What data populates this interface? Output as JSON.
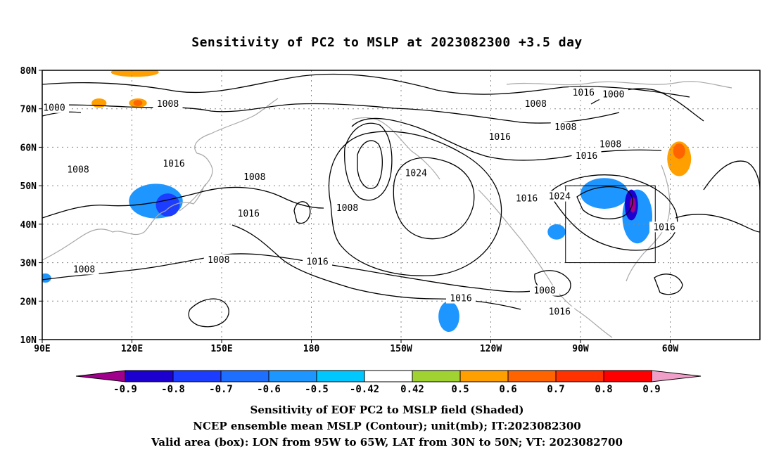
{
  "title": "Sensitivity of PC2 to MSLP at 2023082300 +3.5 day",
  "axes": {
    "lat_labels": [
      "80N",
      "70N",
      "60N",
      "50N",
      "40N",
      "30N",
      "20N",
      "10N"
    ],
    "lon_labels": [
      "90E",
      "120E",
      "150E",
      "180",
      "150W",
      "120W",
      "90W",
      "60W"
    ]
  },
  "contour_labels": [
    {
      "text": "1000",
      "lon": 94,
      "lat": 70
    },
    {
      "text": "1008",
      "lon": 132,
      "lat": 71
    },
    {
      "text": "1016",
      "lon": 271,
      "lat": 74
    },
    {
      "text": "1008",
      "lon": 255,
      "lat": 71
    },
    {
      "text": "1000",
      "lon": 281,
      "lat": 73.5
    },
    {
      "text": "1008",
      "lon": 265,
      "lat": 65
    },
    {
      "text": "1016",
      "lon": 243,
      "lat": 62.5
    },
    {
      "text": "1008",
      "lon": 280,
      "lat": 60.5
    },
    {
      "text": "1016",
      "lon": 272,
      "lat": 57.5
    },
    {
      "text": "1008",
      "lon": 102,
      "lat": 54
    },
    {
      "text": "1016",
      "lon": 134,
      "lat": 55.5
    },
    {
      "text": "1008",
      "lon": 161,
      "lat": 52
    },
    {
      "text": "1024",
      "lon": 215,
      "lat": 53
    },
    {
      "text": "1016",
      "lon": 252,
      "lat": 46.5
    },
    {
      "text": "1024",
      "lon": 263,
      "lat": 47
    },
    {
      "text": "1016",
      "lon": 159,
      "lat": 42.5
    },
    {
      "text": "1008",
      "lon": 192,
      "lat": 44
    },
    {
      "text": "1016",
      "lon": 298,
      "lat": 39
    },
    {
      "text": "1008",
      "lon": 149,
      "lat": 30.5
    },
    {
      "text": "1016",
      "lon": 182,
      "lat": 30
    },
    {
      "text": "1008",
      "lon": 104,
      "lat": 28
    },
    {
      "text": "1008",
      "lon": 258,
      "lat": 22.5
    },
    {
      "text": "1016",
      "lon": 230,
      "lat": 20.5
    },
    {
      "text": "1016",
      "lon": 263,
      "lat": 17
    }
  ],
  "valid_box": {
    "lon_w": 265,
    "lon_e": 295,
    "lat_s": 30,
    "lat_n": 50
  },
  "shading": [
    {
      "value": -0.5,
      "cx": 128,
      "cy": 46,
      "rx": 9,
      "ry": 4.5
    },
    {
      "value": -0.7,
      "cx": 132,
      "cy": 45,
      "rx": 4,
      "ry": 3
    },
    {
      "value": -0.5,
      "cx": 278,
      "cy": 48,
      "rx": 8,
      "ry": 4
    },
    {
      "value": -0.5,
      "cx": 289,
      "cy": 42,
      "rx": 5,
      "ry": 7
    },
    {
      "value": -0.8,
      "cx": 287,
      "cy": 45,
      "rx": 2.2,
      "ry": 4
    },
    {
      "value": -0.9,
      "cx": 287.5,
      "cy": 45,
      "rx": 1,
      "ry": 2
    },
    {
      "value": -0.5,
      "cx": 226,
      "cy": 16,
      "rx": 3.5,
      "ry": 4
    },
    {
      "value": -0.5,
      "cx": 262,
      "cy": 38,
      "rx": 3,
      "ry": 2
    },
    {
      "value": -0.5,
      "cx": 91,
      "cy": 26,
      "rx": 2,
      "ry": 1.2
    },
    {
      "value": 0.5,
      "cx": 121,
      "cy": 79.5,
      "rx": 8,
      "ry": 1.2
    },
    {
      "value": 0.5,
      "cx": 109,
      "cy": 71.5,
      "rx": 2.5,
      "ry": 1.2
    },
    {
      "value": 0.5,
      "cx": 122,
      "cy": 71.5,
      "rx": 3,
      "ry": 1.2
    },
    {
      "value": 0.6,
      "cx": 122,
      "cy": 71.5,
      "rx": 1.5,
      "ry": 0.8
    },
    {
      "value": 0.5,
      "cx": 303,
      "cy": 57,
      "rx": 4,
      "ry": 4.5
    },
    {
      "value": 0.6,
      "cx": 303,
      "cy": 59,
      "rx": 2,
      "ry": 2
    }
  ],
  "colorbar": {
    "labels": [
      "-0.9",
      "-0.8",
      "-0.7",
      "-0.6",
      "-0.5",
      "-0.42",
      "0.42",
      "0.5",
      "0.6",
      "0.7",
      "0.8",
      "0.9"
    ],
    "colors": [
      "#a0008c",
      "#1c00d0",
      "#1c3cff",
      "#1e6eff",
      "#1e96ff",
      "#00c8ff",
      "#ffffff",
      "#a0d232",
      "#ffa000",
      "#ff6400",
      "#ff3200",
      "#ff0000",
      "#f0a0c8"
    ]
  },
  "captions": [
    "Sensitivity of EOF PC2 to MSLP field (Shaded)",
    "NCEP ensemble mean MSLP (Contour); unit(mb); IT:2023082300",
    "Valid area (box): LON from 95W to 65W, LAT from 30N to 50N; VT: 2023082700"
  ]
}
